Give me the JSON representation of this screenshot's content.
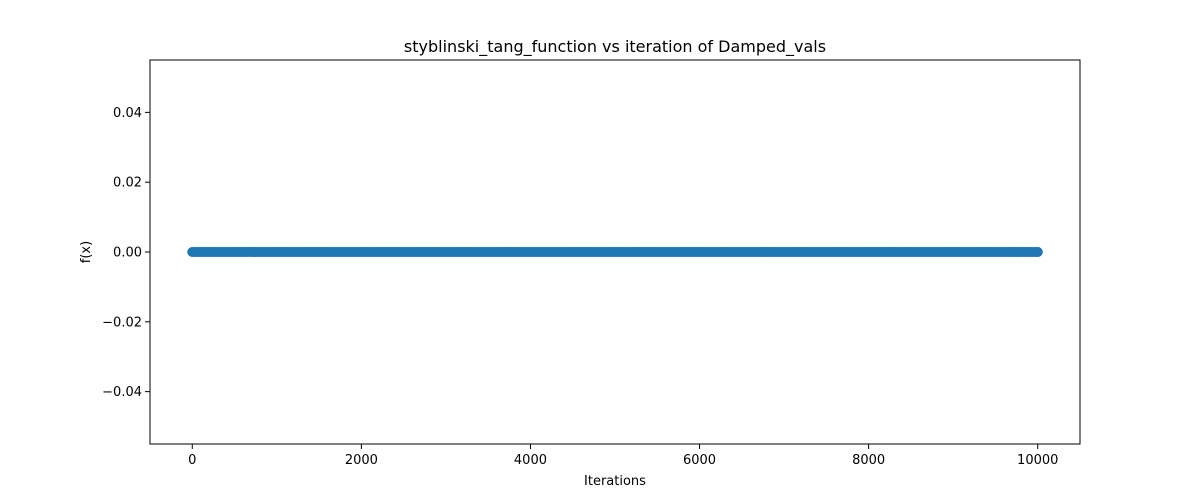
{
  "chart_data": {
    "type": "scatter",
    "title": "styblinski_tang_function vs iteration of Damped_vals",
    "xlabel": "Iterations",
    "ylabel": "f(x)",
    "xlim": [
      -500,
      10500
    ],
    "ylim": [
      -0.055,
      0.055
    ],
    "x_ticks": [
      0,
      2000,
      4000,
      6000,
      8000,
      10000
    ],
    "x_tick_labels": [
      "0",
      "2000",
      "4000",
      "6000",
      "8000",
      "10000"
    ],
    "y_ticks": [
      -0.04,
      -0.02,
      0.0,
      0.02,
      0.04
    ],
    "y_tick_labels": [
      "−0.04",
      "−0.02",
      "0.00",
      "0.02",
      "0.04"
    ],
    "grid": false,
    "legend": "none",
    "series": [
      {
        "color": "#1f77b4",
        "x_start": 0,
        "x_end": 10000,
        "x_step": 1,
        "y_constant": 0.0
      }
    ]
  }
}
